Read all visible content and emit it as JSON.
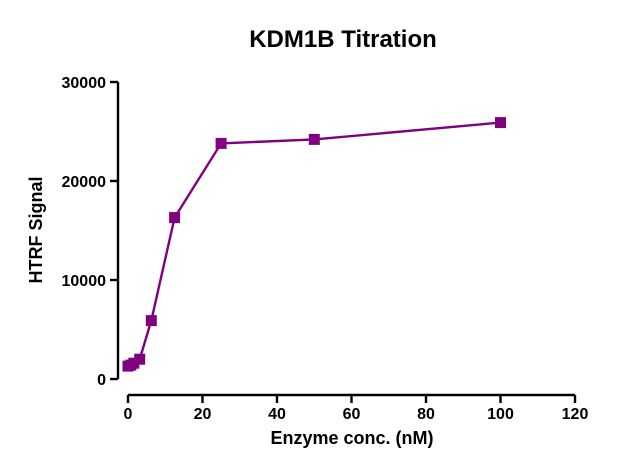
{
  "chart_data": {
    "type": "line",
    "title": "KDM1B Titration",
    "xlabel": "Enzyme conc. (nM)",
    "ylabel": "HTRF Signal",
    "xlim": [
      0,
      120
    ],
    "ylim": [
      0,
      30000
    ],
    "xticks": [
      0,
      20,
      40,
      60,
      80,
      100,
      120
    ],
    "yticks": [
      0,
      10000,
      20000,
      30000
    ],
    "grid": false,
    "legend": "none",
    "series": [
      {
        "color": "#800080",
        "marker": "square",
        "x": [
          0,
          0.78,
          1.56,
          3.13,
          6.25,
          12.5,
          25,
          50,
          100
        ],
        "y": [
          1300,
          1400,
          1600,
          2000,
          5900,
          16300,
          23800,
          24200,
          25900
        ]
      }
    ]
  }
}
